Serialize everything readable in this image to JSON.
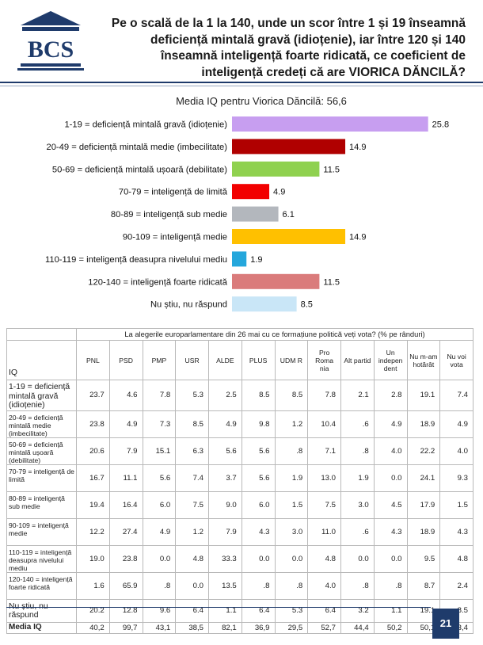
{
  "logo": {
    "text": "BCS",
    "color": "#1f3b6b"
  },
  "header": {
    "title_lines": [
      "Pe o scală de la 1 la 140, unde un scor între 1 și 19 înseamnă",
      "deficiență mintală gravă (idioțenie), iar între 120 și 140",
      "înseamnă inteligență foarte ridicată, ce coeficient de",
      "inteligență credeți că are VIORICA DĂNCILĂ?"
    ]
  },
  "chart_data": {
    "type": "bar",
    "orientation": "horizontal",
    "title": "Media IQ pentru Viorica Dăncilă: 56,6",
    "categories": [
      "1-19 = deficiență mintală gravă (idioțenie)",
      "20-49 = deficiență mintală medie (imbecilitate)",
      "50-69 = deficiență mintală ușoară (debilitate)",
      "70-79 = inteligență de limită",
      "80-89 = inteligență sub medie",
      "90-109 = inteligență medie",
      "110-119 = inteligență deasupra nivelului mediu",
      "120-140 = inteligență foarte ridicată",
      "Nu știu, nu răspund"
    ],
    "values": [
      25.8,
      14.9,
      11.5,
      4.9,
      6.1,
      14.9,
      1.9,
      11.5,
      8.5
    ],
    "value_labels": [
      "25.8",
      "14.9",
      "11.5",
      "4.9",
      "6.1",
      "14.9",
      "1.9",
      "11.5",
      "8.5"
    ],
    "colors": [
      "#c79ef0",
      "#b00000",
      "#8fd14f",
      "#f20000",
      "#b3b7bd",
      "#ffc000",
      "#25a7dc",
      "#da7b7b",
      "#c9e6f7"
    ],
    "xlim": [
      0,
      30
    ],
    "xlabel": "",
    "ylabel": ""
  },
  "table": {
    "caption": "La alegerile europarlamentare din 26 mai cu ce formațiune politică veți vota? (% pe rânduri)",
    "row_header": "IQ",
    "columns": [
      "PNL",
      "PSD",
      "PMP",
      "USR",
      "ALDE",
      "PLUS",
      "UDM R",
      "Pro Roma nia",
      "Alt partid",
      "Un indepen dent",
      "Nu m-am hotărât",
      "Nu voi vota"
    ],
    "rows": [
      {
        "label": "1-19 = deficiență mintală gravă (idioțenie)",
        "values": [
          "23.7",
          "4.6",
          "7.8",
          "5.3",
          "2.5",
          "8.5",
          "8.5",
          "7.8",
          "2.1",
          "2.8",
          "19.1",
          "7.4"
        ]
      },
      {
        "label": "20-49 = deficiență mintală medie (imbecilitate)",
        "values": [
          "23.8",
          "4.9",
          "7.3",
          "8.5",
          "4.9",
          "9.8",
          "1.2",
          "10.4",
          ".6",
          "4.9",
          "18.9",
          "4.9"
        ]
      },
      {
        "label": "50-69 = deficiență mintală ușoară (debilitate)",
        "values": [
          "20.6",
          "7.9",
          "15.1",
          "6.3",
          "5.6",
          "5.6",
          ".8",
          "7.1",
          ".8",
          "4.0",
          "22.2",
          "4.0"
        ]
      },
      {
        "label": "70-79 = inteligență de limită",
        "values": [
          "16.7",
          "11.1",
          "5.6",
          "7.4",
          "3.7",
          "5.6",
          "1.9",
          "13.0",
          "1.9",
          "0.0",
          "24.1",
          "9.3"
        ]
      },
      {
        "label": "80-89 = inteligență sub medie",
        "values": [
          "19.4",
          "16.4",
          "6.0",
          "7.5",
          "9.0",
          "6.0",
          "1.5",
          "7.5",
          "3.0",
          "4.5",
          "17.9",
          "1.5"
        ]
      },
      {
        "label": "90-109 = inteligență medie",
        "values": [
          "12.2",
          "27.4",
          "4.9",
          "1.2",
          "7.9",
          "4.3",
          "3.0",
          "11.0",
          ".6",
          "4.3",
          "18.9",
          "4.3"
        ]
      },
      {
        "label": "110-119 = inteligență deasupra nivelului mediu",
        "values": [
          "19.0",
          "23.8",
          "0.0",
          "4.8",
          "33.3",
          "0.0",
          "0.0",
          "4.8",
          "0.0",
          "0.0",
          "9.5",
          "4.8"
        ]
      },
      {
        "label": "120-140 = inteligență foarte ridicată",
        "values": [
          "1.6",
          "65.9",
          ".8",
          "0.0",
          "13.5",
          ".8",
          ".8",
          "4.0",
          ".8",
          ".8",
          "8.7",
          "2.4"
        ]
      },
      {
        "label": "Nu știu, nu răspund",
        "values": [
          "20.2",
          "12.8",
          "9.6",
          "6.4",
          "1.1",
          "6.4",
          "5.3",
          "6.4",
          "3.2",
          "1.1",
          "19.1",
          "8.5"
        ]
      }
    ],
    "mean_row": {
      "label": "Media IQ",
      "values": [
        "40,2",
        "99,7",
        "43,1",
        "38,5",
        "82,1",
        "36,9",
        "29,5",
        "52,7",
        "44,4",
        "50,2",
        "50,1",
        "43,4"
      ]
    }
  },
  "footer": {
    "page_number": "21"
  }
}
